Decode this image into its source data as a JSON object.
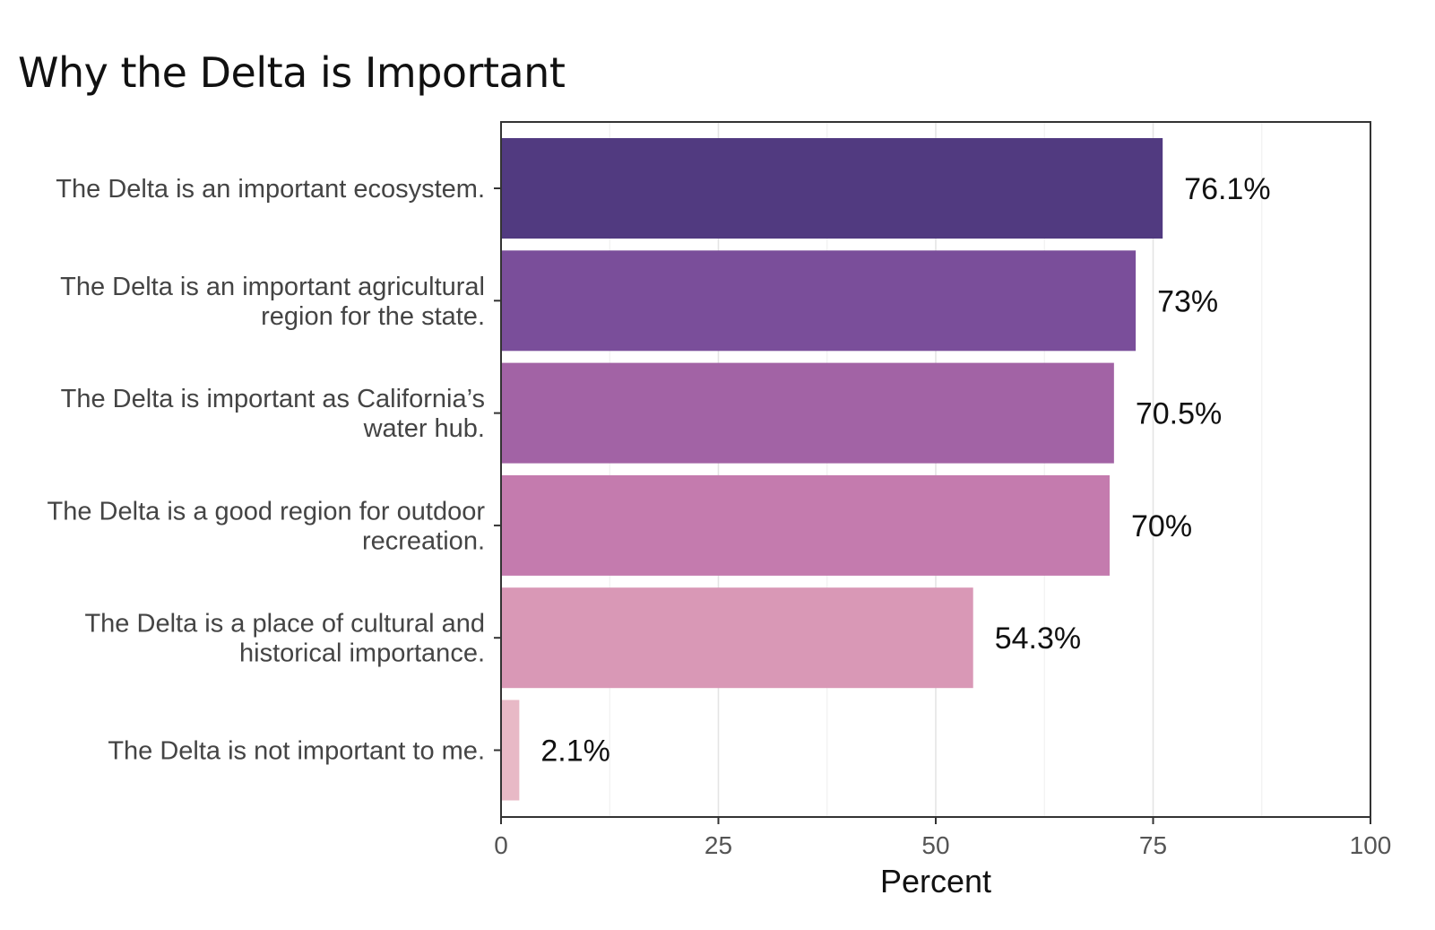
{
  "chart_data": {
    "type": "bar",
    "orientation": "horizontal",
    "title": "Why the Delta is Important",
    "xlabel": "Percent",
    "ylabel": "",
    "xlim": [
      0,
      100
    ],
    "x_ticks": [
      0,
      25,
      50,
      75,
      100
    ],
    "grid": true,
    "legend": "none",
    "categories": [
      [
        "The Delta is an important ecosystem."
      ],
      [
        "The Delta is an important agricultural",
        "region for the state."
      ],
      [
        "The Delta is important as California’s",
        "water hub."
      ],
      [
        "The Delta is a good region for outdoor",
        "recreation."
      ],
      [
        "The Delta is a place of cultural and",
        "historical importance."
      ],
      [
        "The Delta is not important to me."
      ]
    ],
    "values": [
      76.1,
      73,
      70.5,
      70,
      54.3,
      2.1
    ],
    "value_labels": [
      "76.1%",
      "73%",
      "70.5%",
      "70%",
      "54.3%",
      "2.1%"
    ],
    "colors": [
      "#513a80",
      "#7a4e9a",
      "#a263a5",
      "#c47bae",
      "#d998b6",
      "#e8b9c6"
    ]
  }
}
